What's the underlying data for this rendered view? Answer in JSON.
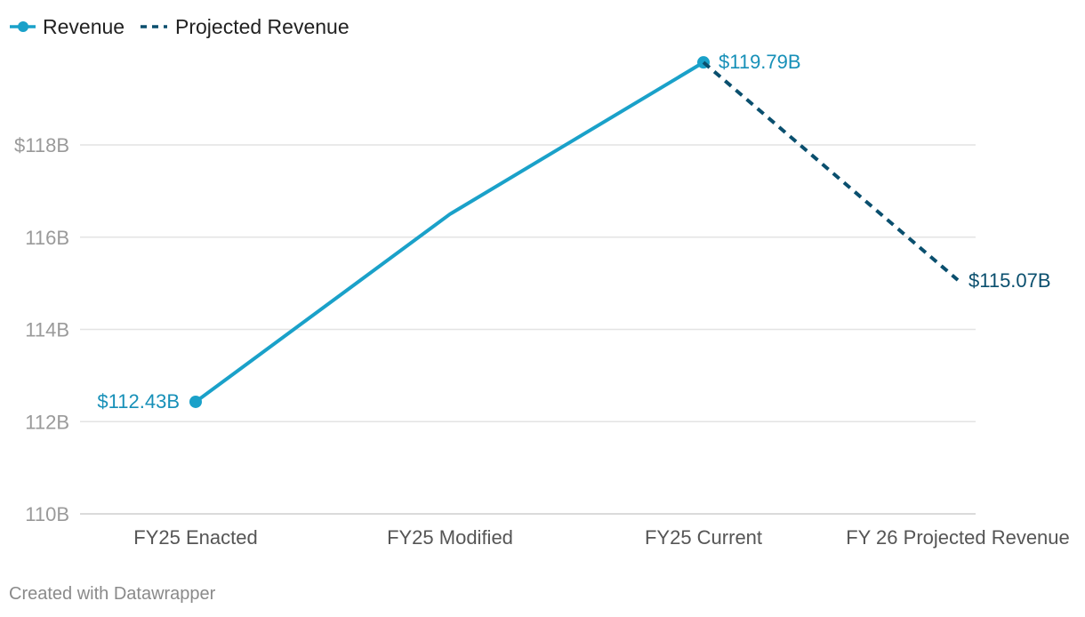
{
  "chart_data": {
    "type": "line",
    "categories": [
      "FY25 Enacted",
      "FY25 Modified",
      "FY25 Current",
      "FY 26 Projected Revenue"
    ],
    "series": [
      {
        "name": "Revenue",
        "style": "solid",
        "color": "#1aa1c9",
        "values": [
          112.43,
          116.5,
          119.79,
          null
        ],
        "labels": [
          "$112.43B",
          null,
          "$119.79B",
          null
        ]
      },
      {
        "name": "Projected Revenue",
        "style": "dashed",
        "color": "#0a4f6e",
        "values": [
          null,
          null,
          119.79,
          115.07
        ],
        "labels": [
          null,
          null,
          null,
          "$115.07B"
        ]
      }
    ],
    "yticks": [
      {
        "value": 110,
        "label": "110B"
      },
      {
        "value": 112,
        "label": "112B"
      },
      {
        "value": 114,
        "label": "114B"
      },
      {
        "value": 116,
        "label": "116B"
      },
      {
        "value": 118,
        "label": "$118B"
      }
    ],
    "ylim": [
      110,
      119.79
    ],
    "grid": true,
    "legend_position": "top-left"
  },
  "footer": {
    "credit": "Created with Datawrapper"
  }
}
